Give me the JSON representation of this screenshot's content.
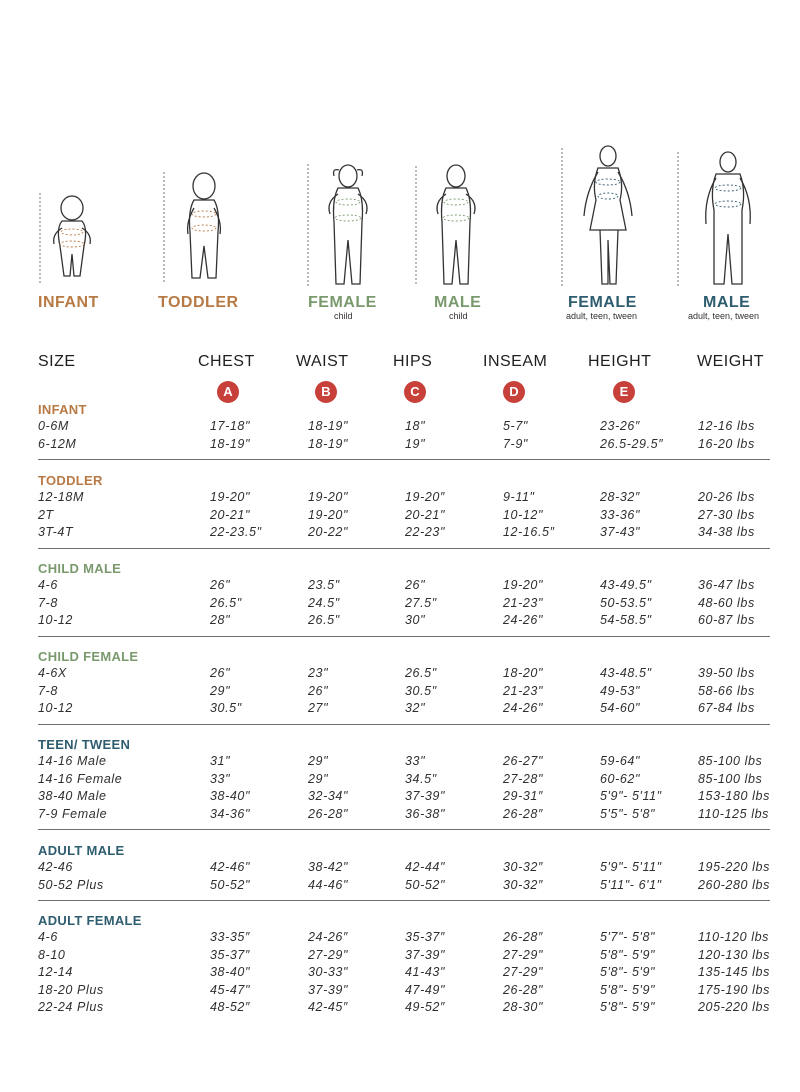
{
  "figures": [
    {
      "label": "INFANT",
      "sub": "",
      "color": "#b87a45"
    },
    {
      "label": "TODDLER",
      "sub": "",
      "color": "#b87a45"
    },
    {
      "label": "FEMALE",
      "sub": "child",
      "color": "#7a9a6e"
    },
    {
      "label": "MALE",
      "sub": "child",
      "color": "#7a9a6e"
    },
    {
      "label": "FEMALE",
      "sub": "adult, teen, tween",
      "color": "#2f5d70"
    },
    {
      "label": "MALE",
      "sub": "adult, teen, tween",
      "color": "#2f5d70"
    }
  ],
  "figure_marks": {
    "height": "E",
    "chest": "A",
    "waist": "B",
    "hips": "C",
    "inseam": "D"
  },
  "header": {
    "size": "SIZE",
    "columns": [
      {
        "label": "CHEST",
        "badge": "A"
      },
      {
        "label": "WAIST",
        "badge": "B"
      },
      {
        "label": "HIPS",
        "badge": "C"
      },
      {
        "label": "INSEAM",
        "badge": "D"
      },
      {
        "label": "HEIGHT",
        "badge": "E"
      },
      {
        "label": "WEIGHT",
        "badge": ""
      }
    ]
  },
  "colors": {
    "warm": "#b87a45",
    "green": "#7a9a6e",
    "teal": "#2f5d70",
    "badge": "#c8403a"
  },
  "sections": [
    {
      "title": "INFANT",
      "color": "#b87a45",
      "rows": [
        [
          "0-6M",
          "17-18\"",
          "18-19\"",
          "18\"",
          "5-7\"",
          "23-26″",
          "12-16 lbs"
        ],
        [
          "6-12M",
          "18-19\"",
          "18-19\"",
          "19\"",
          "7-9\"",
          "26.5-29.5″",
          "16-20 lbs"
        ]
      ]
    },
    {
      "title": "TODDLER",
      "color": "#b87a45",
      "rows": [
        [
          "12-18M",
          "19-20\"",
          "19-20\"",
          "19-20″",
          "9-11\"",
          "28-32″",
          "20-26 lbs"
        ],
        [
          "2T",
          "20-21\"",
          "19-20\"",
          "20-21\"",
          "10-12\"",
          "33-36\"",
          "27-30 lbs"
        ],
        [
          "3T-4T",
          "22-23.5\"",
          "20-22\"",
          "22-23\"",
          "12-16.5″",
          "37-43\"",
          "34-38 lbs"
        ]
      ]
    },
    {
      "title": "CHILD MALE",
      "color": "#7a9a6e",
      "rows": [
        [
          "4-6",
          "26\"",
          "23.5\"",
          "26\"",
          "19-20\"",
          "43-49.5\"",
          "36-47 lbs"
        ],
        [
          "7-8",
          "26.5\"",
          "24.5\"",
          "27.5\"",
          "21-23\"",
          "50-53.5\"",
          "48-60 lbs"
        ],
        [
          "10-12",
          "28\"",
          "26.5\"",
          "30\"",
          "24-26\"",
          "54-58.5\"",
          "60-87 lbs"
        ]
      ]
    },
    {
      "title": "CHILD FEMALE",
      "color": "#7a9a6e",
      "rows": [
        [
          "4-6X",
          "26\"",
          "23\"",
          "26.5\"",
          "18-20\"",
          "43-48.5\"",
          "39-50 lbs"
        ],
        [
          "7-8",
          "29\"",
          "26\"",
          "30.5\"",
          "21-23\"",
          "49-53\"",
          "58-66 lbs"
        ],
        [
          "10-12",
          "30.5\"",
          "27\"",
          "32\"",
          "24-26\"",
          "54-60\"",
          "67-84 lbs"
        ]
      ]
    },
    {
      "title": "TEEN/ TWEEN",
      "color": "#2f5d70",
      "rows": [
        [
          "14-16 Male",
          "31\"",
          "29\"",
          "33\"",
          "26-27\"",
          "59-64\"",
          "85-100 lbs"
        ],
        [
          "14-16 Female",
          "33\"",
          "29\"",
          "34.5\"",
          "27-28\"",
          "60-62\"",
          "85-100 lbs"
        ],
        [
          "38-40 Male",
          "38-40\"",
          "32-34\"",
          "37-39\"",
          "29-31″",
          "5'9\"- 5'11\"",
          "153-180 lbs"
        ],
        [
          "7-9 Female",
          "34-36\"",
          "26-28\"",
          "36-38\"",
          "26-28″",
          "5'5\"- 5'8\"",
          "110-125 lbs"
        ]
      ]
    },
    {
      "title": "ADULT MALE",
      "color": "#2f5d70",
      "rows": [
        [
          "42-46",
          "42-46\"",
          "38-42\"",
          "42-44\"",
          "30-32″",
          "5'9\"- 5'11\"",
          "195-220 lbs"
        ],
        [
          "50-52 Plus",
          "50-52\"",
          "44-46\"",
          "50-52\"",
          "30-32″",
          "5'11\"- 6'1\"",
          "260-280 lbs"
        ]
      ]
    },
    {
      "title": "ADULT FEMALE",
      "color": "#2f5d70",
      "rows": [
        [
          "4-6",
          "33-35″",
          "24-26″",
          "35-37″",
          "26-28″",
          "5'7\"- 5'8\"",
          "110-120 lbs"
        ],
        [
          "8-10",
          "35-37″",
          "27-29\"",
          "37-39\"",
          "27-29\"",
          "5'8\"- 5'9\"",
          "120-130 lbs"
        ],
        [
          "12-14",
          "38-40\"",
          "30-33\"",
          "41-43\"",
          "27-29\"",
          "5'8\"- 5'9\"",
          "135-145 lbs"
        ],
        [
          "18-20 Plus",
          "45-47\"",
          "37-39\"",
          "47-49\"",
          "26-28\"",
          "5'8\"- 5'9\"",
          "175-190 lbs"
        ],
        [
          "22-24 Plus",
          "48-52″",
          "42-45″",
          "49-52″",
          "28-30\"",
          "5'8\"- 5'9\"",
          "205-220 lbs"
        ]
      ]
    }
  ]
}
